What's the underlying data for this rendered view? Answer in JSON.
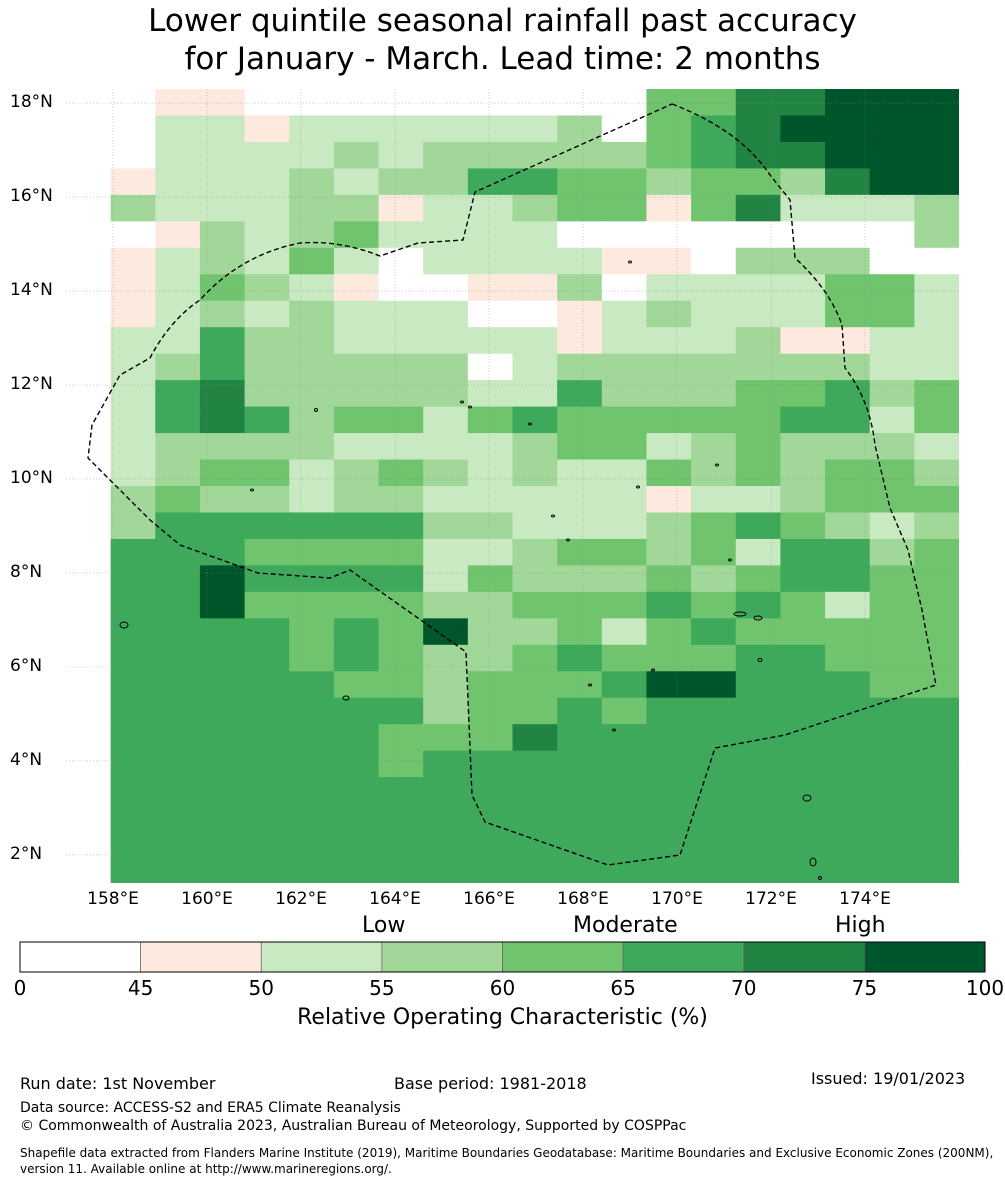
{
  "title": {
    "line1": "Lower quintile seasonal rainfall past accuracy",
    "line2": "for January - March. Lead time: 2 months"
  },
  "map": {
    "lat_labels": [
      "18°N",
      "16°N",
      "14°N",
      "12°N",
      "10°N",
      "8°N",
      "6°N",
      "4°N",
      "2°N"
    ],
    "lon_labels": [
      "158°E",
      "160°E",
      "162°E",
      "164°E",
      "166°E",
      "168°E",
      "170°E",
      "172°E",
      "174°E"
    ],
    "lat_values": [
      18,
      16,
      14,
      12,
      10,
      8,
      6,
      4,
      2
    ],
    "lon_values": [
      158,
      160,
      162,
      164,
      166,
      168,
      170,
      172,
      174
    ],
    "extent": {
      "lon_min": 157.0,
      "lon_max": 176.0,
      "lat_min": 1.4,
      "lat_max": 18.3
    },
    "cell_deg": 0.83,
    "grid_rows": [
      "00110000000004466777",
      "00221222222304567777",
      "00222232333334566777",
      "01222323355443443677",
      "03222331223441462223",
      "00132342222000000003",
      "01232420222211033300",
      "01243210011302222442",
      "01232322200123222442",
      "02253322222122231122",
      "02353333302333333322",
      "02563333322533344534",
      "02565344245444445524",
      "02333322223442343332",
      "02344234323224343443",
      "03433233222221223444",
      "03555555332223454323",
      "05554444223443425534",
      "05575555243334345544",
      "05574444334445454244",
      "05555454733424544444",
      "05555454334544455444",
      "05555544344457755544",
      "05555555344545555555",
      "05555554446555555555",
      "05555554555555555555",
      "05555555555555555555",
      "05555555555555555555",
      "05555555555555555555",
      "05555555555555555555"
    ]
  },
  "colorbar": {
    "categories": [
      "Low",
      "Moderate",
      "High"
    ],
    "ticks": [
      "0",
      "45",
      "50",
      "55",
      "60",
      "65",
      "70",
      "75",
      "100"
    ],
    "colors": [
      "#ffffff",
      "#fee9df",
      "#c8e9c1",
      "#a1d89a",
      "#70c46e",
      "#3fa95b",
      "#218442",
      "#00562b"
    ],
    "title": "Relative Operating Characteristic (%)"
  },
  "footer": {
    "run_date": "Run date: 1st November",
    "base_period": "Base period: 1981-2018",
    "issued": "Issued: 19/01/2023",
    "data_source": "Data source: ACCESS-S2 and ERA5 Climate Reanalysis",
    "copyright": "© Commonwealth of Australia 2023, Australian Bureau of Meteorology, Supported by COSPPac",
    "shapefile_line1": "Shapefile data extracted from Flanders Marine Institute (2019), Maritime Boundaries Geodatabase: Maritime Boundaries and Exclusive Economic Zones (200NM),",
    "shapefile_line2": "version 11. Available online at http://www.marineregions.org/."
  }
}
